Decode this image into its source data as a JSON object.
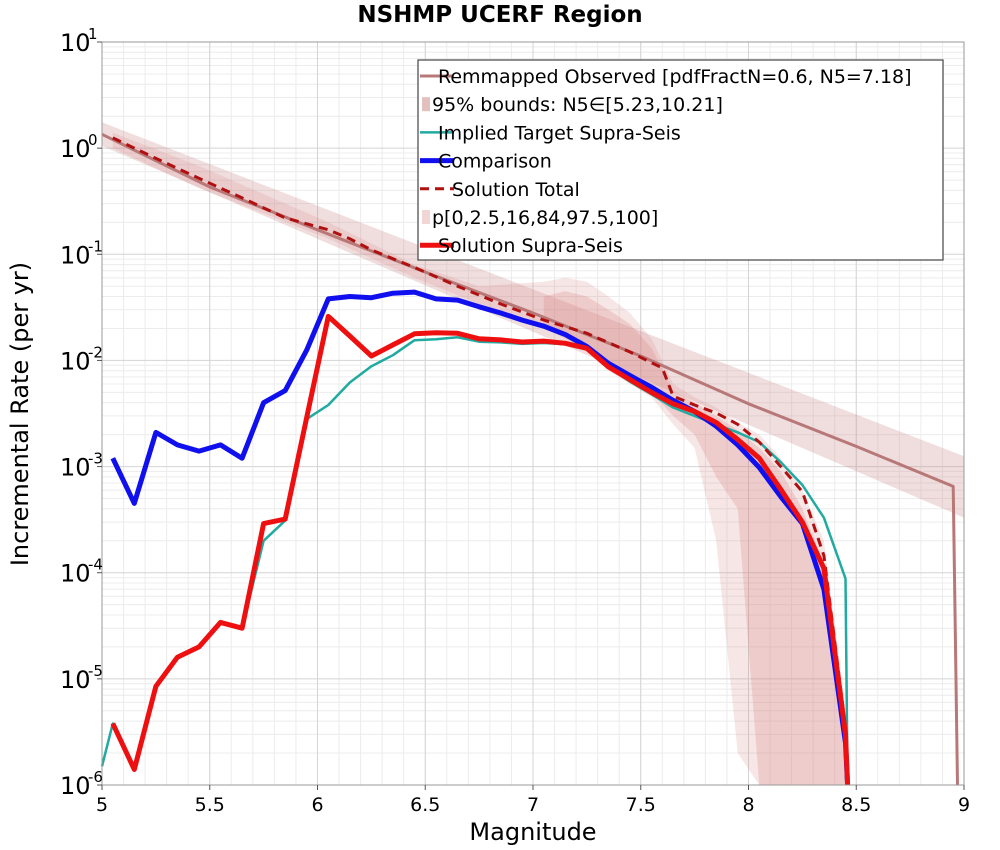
{
  "chart_data": {
    "type": "line",
    "title": "NSHMP UCERF Region",
    "xlabel": "Magnitude",
    "ylabel": "Incremental Rate (per yr)",
    "xlim": [
      5,
      9
    ],
    "ylim": [
      1e-06,
      10
    ],
    "yscale": "log",
    "grid": true,
    "legend_position": "top-right",
    "xticks": [
      5,
      5.5,
      6,
      6.5,
      7,
      7.5,
      8,
      8.5,
      9
    ],
    "xtick_labels": [
      "5",
      "5.5",
      "6",
      "6.5",
      "7",
      "7.5",
      "8",
      "8.5",
      "9"
    ],
    "yticks": [
      {
        "value": 1e-06,
        "base": "10",
        "exp": "-6"
      },
      {
        "value": 1e-05,
        "base": "10",
        "exp": "-5"
      },
      {
        "value": 0.0001,
        "base": "10",
        "exp": "-4"
      },
      {
        "value": 0.001,
        "base": "10",
        "exp": "-3"
      },
      {
        "value": 0.01,
        "base": "10",
        "exp": "-2"
      },
      {
        "value": 0.1,
        "base": "10",
        "exp": "-1"
      },
      {
        "value": 1,
        "base": "10",
        "exp": "0"
      },
      {
        "value": 10,
        "base": "10",
        "exp": "1"
      }
    ],
    "bands": [
      {
        "name": "95% bounds: N5∈[5.23,10.21]",
        "color": "#c98a8a",
        "opacity": 0.28,
        "x": [
          5.0,
          9.0
        ],
        "lower": [
          1.05,
          0.00033
        ],
        "upper": [
          1.75,
          0.00125
        ]
      },
      {
        "name": "p[0,2.5,16,84,97.5,100]",
        "color": "#d98080",
        "opacity": 0.2,
        "x": [
          5.05,
          5.45,
          6.05,
          6.45,
          6.75,
          7.05,
          7.15,
          7.25,
          7.35,
          7.45,
          7.55,
          7.65,
          7.75,
          7.85,
          7.95,
          8.05,
          8.15,
          8.25,
          8.35,
          8.45
        ],
        "lower": [
          1.0,
          0.42,
          0.14,
          0.06,
          0.034,
          0.02,
          0.016,
          0.012,
          0.008,
          0.006,
          0.0045,
          0.0025,
          0.0015,
          0.0002,
          2e-06,
          1e-06,
          1e-06,
          1e-06,
          1e-06,
          1e-06
        ],
        "upper": [
          1.4,
          0.68,
          0.2,
          0.08,
          0.05,
          0.055,
          0.06,
          0.055,
          0.04,
          0.028,
          0.016,
          0.006,
          0.0045,
          0.0036,
          0.0026,
          0.002,
          0.0012,
          0.0006,
          0.0002,
          5e-06
        ]
      },
      {
        "name": "p[0,2.5,16,84,97.5,100]",
        "color": "#d98080",
        "opacity": 0.25,
        "x": [
          7.05,
          7.15,
          7.25,
          7.35,
          7.45,
          7.55,
          7.65,
          7.75,
          7.85,
          7.95,
          8.05,
          8.15,
          8.25,
          8.35,
          8.45
        ],
        "lower": [
          0.022,
          0.018,
          0.014,
          0.009,
          0.007,
          0.005,
          0.003,
          0.002,
          0.0008,
          0.0004,
          1e-06,
          1e-06,
          1e-06,
          1e-06,
          1e-06
        ],
        "upper": [
          0.04,
          0.045,
          0.04,
          0.03,
          0.022,
          0.013,
          0.0052,
          0.004,
          0.003,
          0.0022,
          0.0015,
          0.0009,
          0.0004,
          0.00012,
          3e-06
        ]
      }
    ],
    "series": [
      {
        "name": "Remmapped Observed [pdfFractN=0.6, N5=7.18]",
        "color": "#b87878",
        "width": 3,
        "dash": "",
        "x": [
          5.0,
          5.5,
          6.0,
          6.5,
          7.0,
          7.5,
          8.0,
          8.5,
          8.95,
          8.95,
          8.97
        ],
        "y": [
          1.35,
          0.43,
          0.17,
          0.068,
          0.028,
          0.011,
          0.0039,
          0.00155,
          0.00065,
          0.00065,
          1e-06
        ]
      },
      {
        "name": "Implied Target Supra-Seis",
        "color": "#20aaa0",
        "width": 2.5,
        "dash": "",
        "x": [
          5.0,
          5.05,
          5.15,
          5.25,
          5.35,
          5.45,
          5.55,
          5.65,
          5.75,
          5.85,
          5.95,
          6.05,
          6.15,
          6.25,
          6.35,
          6.45,
          6.55,
          6.65,
          6.75,
          6.85,
          6.95,
          7.05,
          7.15,
          7.25,
          7.35,
          7.45,
          7.55,
          7.65,
          7.75,
          7.85,
          7.95,
          8.05,
          8.15,
          8.25,
          8.35,
          8.45,
          8.46
        ],
        "y": [
          1.5e-06,
          3.8e-06,
          1.4e-06,
          8.5e-06,
          1.6e-05,
          2e-05,
          3.4e-05,
          3e-05,
          0.0002,
          0.00031,
          0.0028,
          0.0038,
          0.0062,
          0.0088,
          0.0112,
          0.0155,
          0.0158,
          0.0165,
          0.015,
          0.0148,
          0.0143,
          0.0146,
          0.0142,
          0.0132,
          0.0086,
          0.0063,
          0.0048,
          0.0036,
          0.003,
          0.0025,
          0.0021,
          0.0017,
          0.0011,
          0.00067,
          0.00033,
          8.8e-05,
          1e-06
        ]
      },
      {
        "name": "Comparison",
        "color": "#1010ee",
        "width": 5,
        "dash": "",
        "x": [
          5.05,
          5.15,
          5.25,
          5.35,
          5.45,
          5.55,
          5.65,
          5.75,
          5.85,
          5.95,
          6.05,
          6.15,
          6.25,
          6.35,
          6.45,
          6.55,
          6.65,
          6.75,
          6.85,
          6.95,
          7.05,
          7.15,
          7.25,
          7.35,
          7.45,
          7.55,
          7.65,
          7.75,
          7.85,
          7.95,
          8.05,
          8.15,
          8.25,
          8.35,
          8.45,
          8.46
        ],
        "y": [
          0.0012,
          0.00045,
          0.0021,
          0.0016,
          0.0014,
          0.0016,
          0.0012,
          0.004,
          0.0052,
          0.0125,
          0.038,
          0.04,
          0.039,
          0.043,
          0.044,
          0.038,
          0.037,
          0.032,
          0.028,
          0.024,
          0.021,
          0.0175,
          0.0135,
          0.0094,
          0.0072,
          0.0056,
          0.0042,
          0.0033,
          0.0024,
          0.0016,
          0.00098,
          0.00052,
          0.00029,
          7e-05,
          2.5e-06,
          1e-06
        ]
      },
      {
        "name": "Solution Total",
        "color": "#b01010",
        "width": 3,
        "dash": "9,6",
        "x": [
          5.05,
          5.25,
          5.45,
          5.65,
          5.85,
          6.05,
          6.15,
          6.25,
          6.45,
          6.65,
          6.85,
          7.05,
          7.25,
          7.45,
          7.55,
          7.6,
          7.65,
          7.75,
          7.85,
          7.95,
          8.05,
          8.15,
          8.25,
          8.35,
          8.45,
          8.46
        ],
        "y": [
          1.25,
          0.8,
          0.52,
          0.34,
          0.22,
          0.17,
          0.14,
          0.11,
          0.075,
          0.05,
          0.034,
          0.024,
          0.018,
          0.012,
          0.0095,
          0.0085,
          0.0046,
          0.0038,
          0.0032,
          0.0025,
          0.0017,
          0.001,
          0.00058,
          0.000145,
          3.5e-06,
          1e-06
        ]
      },
      {
        "name": "Solution Supra-Seis",
        "color": "#ee1010",
        "width": 5,
        "dash": "",
        "x": [
          5.05,
          5.15,
          5.25,
          5.35,
          5.45,
          5.55,
          5.65,
          5.75,
          5.85,
          5.95,
          6.05,
          6.15,
          6.25,
          6.35,
          6.45,
          6.55,
          6.65,
          6.75,
          6.85,
          6.95,
          7.05,
          7.15,
          7.25,
          7.35,
          7.45,
          7.55,
          7.65,
          7.75,
          7.85,
          7.95,
          8.05,
          8.15,
          8.25,
          8.35,
          8.45,
          8.46
        ],
        "y": [
          3.8e-06,
          1.4e-06,
          8.5e-06,
          1.6e-05,
          2e-05,
          3.4e-05,
          3e-05,
          0.00029,
          0.00032,
          0.0029,
          0.026,
          0.017,
          0.011,
          0.014,
          0.0178,
          0.0182,
          0.018,
          0.016,
          0.0156,
          0.0149,
          0.0152,
          0.0145,
          0.013,
          0.0087,
          0.0066,
          0.005,
          0.0039,
          0.0033,
          0.0026,
          0.0018,
          0.0012,
          0.00061,
          0.0003,
          0.00011,
          3e-06,
          1e-06
        ]
      }
    ],
    "legend": [
      {
        "label": "Remmapped Observed [pdfFractN=0.6, N5=7.18]",
        "kind": "line",
        "color": "#b87878",
        "width": 3,
        "dash": ""
      },
      {
        "label": "95% bounds: N5∈[5.23,10.21]",
        "kind": "patch",
        "color": "#e2c0c0"
      },
      {
        "label": "Implied Target Supra-Seis",
        "kind": "line",
        "color": "#20aaa0",
        "width": 2.5,
        "dash": ""
      },
      {
        "label": "Comparison",
        "kind": "line",
        "color": "#1010ee",
        "width": 5,
        "dash": ""
      },
      {
        "label": "Solution Total",
        "kind": "line",
        "color": "#b01010",
        "width": 3,
        "dash": "9,6"
      },
      {
        "label": "p[0,2.5,16,84,97.5,100]",
        "kind": "patch",
        "color": "#f2d6d6"
      },
      {
        "label": "Solution Supra-Seis",
        "kind": "line",
        "color": "#ee1010",
        "width": 5,
        "dash": ""
      }
    ]
  }
}
